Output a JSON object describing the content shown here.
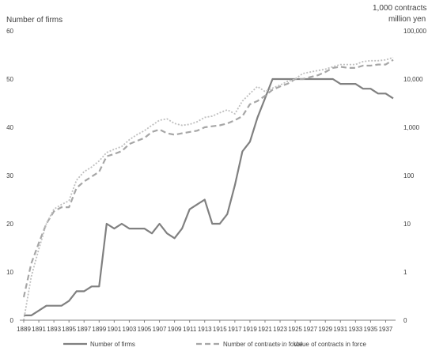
{
  "chart_data": {
    "type": "line",
    "left_axis_title": "Number of firms",
    "right_axis_title_line1": "1,000 contracts",
    "right_axis_title_line2": "million yen",
    "left_ylim": [
      0,
      60
    ],
    "left_ticks": [
      "0",
      "10",
      "20",
      "30",
      "40",
      "50",
      "60"
    ],
    "right_scale": "log",
    "right_ylim_log10": [
      -1,
      5
    ],
    "right_ticks": [
      "0",
      "1",
      "10",
      "100",
      "1,000",
      "10,000",
      "100,000"
    ],
    "x_ticks": [
      "1889",
      "1891",
      "1893",
      "1895",
      "1897",
      "1899",
      "1901",
      "1903",
      "1905",
      "1907",
      "1909",
      "1911",
      "1913",
      "1915",
      "1917",
      "1919",
      "1921",
      "1923",
      "1925",
      "1927",
      "1929",
      "1931",
      "1933",
      "1935",
      "1937"
    ],
    "x": [
      1889,
      1890,
      1891,
      1892,
      1893,
      1894,
      1895,
      1896,
      1897,
      1898,
      1899,
      1900,
      1901,
      1902,
      1903,
      1904,
      1905,
      1906,
      1907,
      1908,
      1909,
      1910,
      1911,
      1912,
      1913,
      1914,
      1915,
      1916,
      1917,
      1918,
      1919,
      1920,
      1921,
      1922,
      1923,
      1924,
      1925,
      1926,
      1927,
      1928,
      1929,
      1930,
      1931,
      1932,
      1933,
      1934,
      1935,
      1936,
      1937,
      1938
    ],
    "grid": false,
    "legend_position": "bottom",
    "series": [
      {
        "name": "Number of firms",
        "axis": "left",
        "style": "solid",
        "color": "#808080",
        "values": [
          1,
          1,
          2,
          3,
          3,
          3,
          4,
          6,
          6,
          7,
          7,
          20,
          19,
          20,
          19,
          19,
          19,
          18,
          20,
          18,
          17,
          19,
          23,
          24,
          25,
          20,
          20,
          22,
          28,
          35,
          37,
          42,
          46,
          50,
          50,
          50,
          50,
          50,
          50,
          50,
          50,
          50,
          49,
          49,
          49,
          48,
          48,
          47,
          47,
          46
        ]
      },
      {
        "name": "Number of contracts in force",
        "axis": "right",
        "style": "dashed",
        "color": "#a6a6a6",
        "values": [
          0.3,
          1.5,
          4,
          10,
          18,
          22,
          22,
          55,
          75,
          95,
          120,
          250,
          280,
          320,
          450,
          520,
          600,
          800,
          900,
          750,
          700,
          750,
          800,
          850,
          1000,
          1050,
          1100,
          1200,
          1400,
          1700,
          3000,
          3500,
          4500,
          6000,
          7000,
          8000,
          10000,
          10000,
          11000,
          12000,
          14000,
          17000,
          18000,
          17000,
          17000,
          19000,
          19000,
          20000,
          20000,
          25000
        ]
      },
      {
        "name": "Value of contracts in force",
        "axis": "right",
        "style": "dotted",
        "color": "#bfbfbf",
        "values": [
          0.1,
          0.8,
          3,
          10,
          20,
          25,
          30,
          80,
          120,
          150,
          200,
          300,
          350,
          400,
          550,
          700,
          850,
          1100,
          1400,
          1500,
          1200,
          1100,
          1150,
          1300,
          1600,
          1700,
          2000,
          2300,
          1900,
          3500,
          5000,
          7000,
          5500,
          6500,
          7500,
          9000,
          10000,
          13000,
          14000,
          15000,
          16000,
          18000,
          20000,
          20000,
          20000,
          23000,
          24000,
          24000,
          25000,
          28000
        ]
      }
    ]
  }
}
